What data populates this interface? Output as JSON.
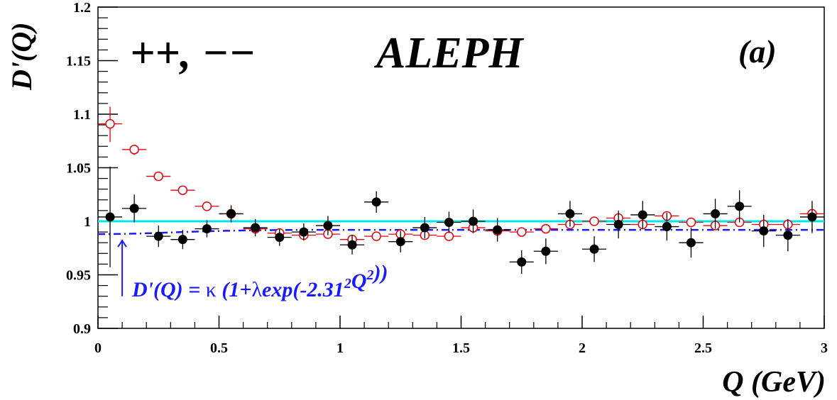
{
  "chart_data": {
    "type": "scatter",
    "title": "ALEPH",
    "charge_label": "++, −−",
    "panel_label": "(a)",
    "xlabel": "Q (GeV)",
    "ylabel": "D'(Q)",
    "xlim": [
      0,
      3
    ],
    "ylim": [
      0.9,
      1.2
    ],
    "x_ticks": [
      0,
      0.5,
      1,
      1.5,
      2,
      2.5,
      3
    ],
    "x_tick_labels": [
      "0",
      "0.5",
      "1",
      "1.5",
      "2",
      "2.5",
      "3"
    ],
    "y_ticks": [
      0.9,
      0.95,
      1.0,
      1.05,
      1.1,
      1.15,
      1.2
    ],
    "y_tick_labels": [
      "0.9",
      "0.95",
      "1",
      "1.05",
      "1.1",
      "1.15",
      "1.2"
    ],
    "grid": false,
    "fit_annotation": "D'(Q) = κ (1+λexp(-2.31²Q²))",
    "colors": {
      "data_filled": "#000000",
      "model_open": "#e8000b",
      "fit": "#1a1aff",
      "reference_line": "#00e5e5",
      "axes": "#000000"
    },
    "reference_line_y": 1.0,
    "fit_curve": {
      "kappa": 0.992,
      "lambda": -0.004,
      "r": 2.31
    },
    "x_error_halfwidth": 0.05,
    "series": [
      {
        "marker": "filled-circle",
        "x": [
          0.05,
          0.15,
          0.25,
          0.35,
          0.45,
          0.55,
          0.65,
          0.75,
          0.85,
          0.95,
          1.05,
          1.15,
          1.25,
          1.35,
          1.45,
          1.55,
          1.65,
          1.75,
          1.85,
          1.95,
          2.05,
          2.15,
          2.25,
          2.35,
          2.45,
          2.55,
          2.65,
          2.75,
          2.85,
          2.95
        ],
        "y": [
          1.004,
          1.012,
          0.986,
          0.983,
          0.993,
          1.007,
          0.994,
          0.985,
          0.99,
          0.996,
          0.978,
          1.018,
          0.981,
          0.994,
          0.999,
          1.0,
          0.992,
          0.962,
          0.972,
          1.007,
          0.974,
          0.997,
          1.006,
          0.995,
          0.98,
          1.007,
          1.014,
          0.991,
          0.987,
          1.004
        ],
        "yerr": [
          0.047,
          0.013,
          0.01,
          0.009,
          0.008,
          0.008,
          0.008,
          0.008,
          0.008,
          0.009,
          0.009,
          0.01,
          0.01,
          0.01,
          0.01,
          0.011,
          0.011,
          0.011,
          0.012,
          0.012,
          0.012,
          0.013,
          0.013,
          0.013,
          0.014,
          0.014,
          0.015,
          0.015,
          0.015,
          0.015
        ]
      },
      {
        "marker": "open-circle",
        "x": [
          0.05,
          0.15,
          0.25,
          0.35,
          0.45,
          0.55,
          0.65,
          0.75,
          0.85,
          0.95,
          1.05,
          1.15,
          1.25,
          1.35,
          1.45,
          1.55,
          1.65,
          1.75,
          1.85,
          1.95,
          2.05,
          2.15,
          2.25,
          2.35,
          2.45,
          2.55,
          2.65,
          2.75,
          2.85,
          2.95
        ],
        "y": [
          1.091,
          1.067,
          1.042,
          1.029,
          1.014,
          1.007,
          0.993,
          0.989,
          0.987,
          0.988,
          0.983,
          0.986,
          0.988,
          0.987,
          0.986,
          0.994,
          0.991,
          0.99,
          0.993,
          0.997,
          1.0,
          1.003,
          0.997,
          1.005,
          0.999,
          0.996,
          0.999,
          0.997,
          0.997,
          1.007
        ]
      }
    ]
  }
}
